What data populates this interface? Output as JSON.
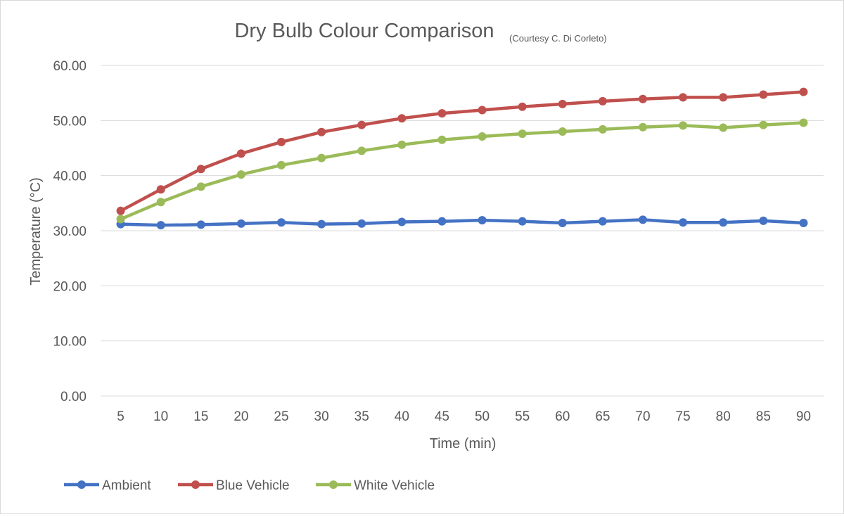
{
  "chart_data": {
    "type": "line",
    "title": "Dry Bulb Colour Comparison",
    "subtitle": "(Courtesy C. Di Corleto)",
    "xlabel": "Time (min)",
    "ylabel": "Temperature (°C)",
    "categories": [
      "5",
      "10",
      "15",
      "20",
      "25",
      "30",
      "35",
      "40",
      "45",
      "50",
      "55",
      "60",
      "65",
      "70",
      "75",
      "80",
      "85",
      "90"
    ],
    "ylim": [
      0,
      60
    ],
    "yticks": [
      "0.00",
      "10.00",
      "20.00",
      "30.00",
      "40.00",
      "50.00",
      "60.00"
    ],
    "grid": true,
    "legend": "bottom-left",
    "series": [
      {
        "name": "Ambient",
        "color": "#4472C4",
        "values": [
          31.2,
          31.0,
          31.1,
          31.3,
          31.5,
          31.2,
          31.3,
          31.6,
          31.7,
          31.9,
          31.7,
          31.4,
          31.7,
          32.0,
          31.5,
          31.5,
          31.8,
          31.4
        ]
      },
      {
        "name": "Blue Vehicle",
        "color": "#C0504D",
        "values": [
          33.6,
          37.5,
          41.2,
          44.0,
          46.1,
          47.9,
          49.2,
          50.4,
          51.3,
          51.9,
          52.5,
          53.0,
          53.5,
          53.9,
          54.2,
          54.2,
          54.7,
          55.2
        ]
      },
      {
        "name": "White Vehicle",
        "color": "#9BBB59",
        "values": [
          32.1,
          35.2,
          38.0,
          40.2,
          41.9,
          43.2,
          44.5,
          45.6,
          46.5,
          47.1,
          47.6,
          48.0,
          48.4,
          48.8,
          49.1,
          48.7,
          49.2,
          49.6
        ]
      }
    ]
  }
}
